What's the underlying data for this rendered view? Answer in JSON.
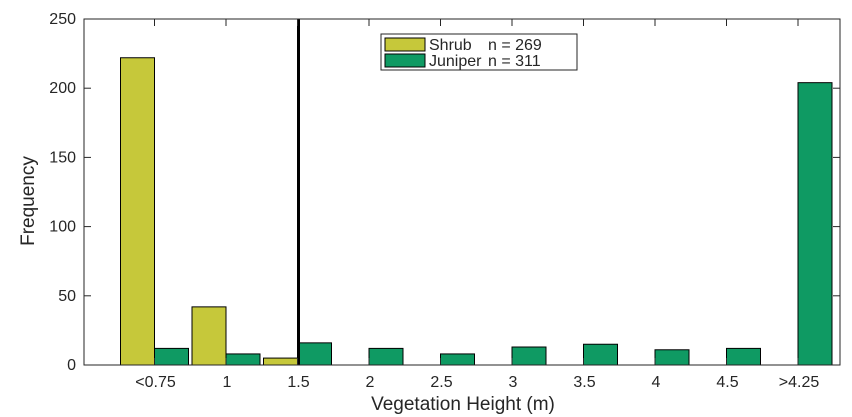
{
  "chart_data": {
    "type": "bar",
    "categories": [
      "<0.75",
      "1",
      "1.5",
      "2",
      "2.5",
      "3",
      "3.5",
      "4",
      "4.5",
      ">4.25"
    ],
    "series": [
      {
        "name": "Shrub",
        "n_label": "n = 269",
        "color": "#c6c83a",
        "values": [
          222,
          42,
          5,
          0,
          0,
          0,
          0,
          0,
          0,
          0
        ]
      },
      {
        "name": "Juniper",
        "n_label": "n = 311",
        "color": "#0f9a63",
        "values": [
          12,
          8,
          16,
          12,
          8,
          13,
          15,
          11,
          12,
          204
        ]
      }
    ],
    "xlabel": "Vegetation Height (m)",
    "ylabel": "Frequency",
    "ylim": [
      0,
      250
    ],
    "yticks": [
      0,
      50,
      100,
      150,
      200,
      250
    ],
    "reference_line_x": "1.5",
    "grid": false,
    "legend_position": "top-center",
    "axis_color": "#262626",
    "bar_edge_color": "#000000",
    "reference_line_color": "#000000"
  }
}
